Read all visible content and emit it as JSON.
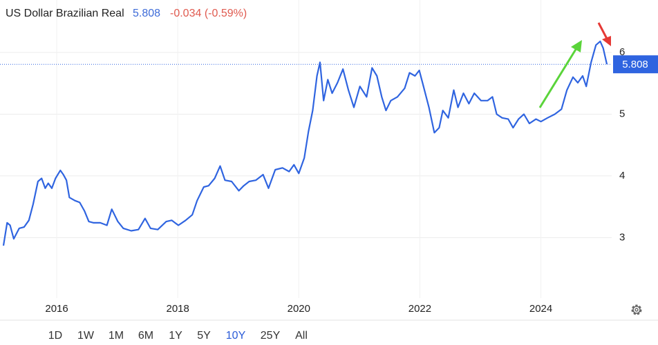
{
  "chart_data": {
    "type": "line",
    "title": "US Dollar Brazilian Real",
    "price": 5.808,
    "change": "-0.034 (-0.59%)",
    "color": "#2f64e0",
    "xlim": [
      2015.12,
      2025.17
    ],
    "ylim": [
      2.02,
      6.85
    ],
    "xticks": [
      2016,
      2018,
      2020,
      2022,
      2024
    ],
    "yticks": [
      3,
      4,
      5,
      6
    ],
    "grid": true,
    "x": [
      2015.12,
      2015.18,
      2015.23,
      2015.29,
      2015.38,
      2015.46,
      2015.54,
      2015.61,
      2015.69,
      2015.75,
      2015.81,
      2015.86,
      2015.92,
      2015.98,
      2016.06,
      2016.11,
      2016.16,
      2016.21,
      2016.3,
      2016.38,
      2016.46,
      2016.53,
      2016.61,
      2016.72,
      2016.83,
      2016.91,
      2017.01,
      2017.1,
      2017.23,
      2017.35,
      2017.46,
      2017.55,
      2017.67,
      2017.81,
      2017.9,
      2018.01,
      2018.13,
      2018.24,
      2018.32,
      2018.43,
      2018.51,
      2018.61,
      2018.7,
      2018.78,
      2018.89,
      2019.01,
      2019.09,
      2019.18,
      2019.29,
      2019.41,
      2019.5,
      2019.61,
      2019.73,
      2019.84,
      2019.92,
      2020.0,
      2020.09,
      2020.16,
      2020.23,
      2020.3,
      2020.35,
      2020.41,
      2020.48,
      2020.55,
      2020.64,
      2020.73,
      2020.82,
      2020.91,
      2021.01,
      2021.12,
      2021.21,
      2021.29,
      2021.37,
      2021.44,
      2021.52,
      2021.63,
      2021.75,
      2021.83,
      2021.92,
      2021.99,
      2022.06,
      2022.15,
      2022.24,
      2022.32,
      2022.38,
      2022.47,
      2022.56,
      2022.63,
      2022.72,
      2022.81,
      2022.9,
      2023.01,
      2023.12,
      2023.2,
      2023.27,
      2023.36,
      2023.46,
      2023.54,
      2023.63,
      2023.72,
      2023.81,
      2023.92,
      2024.0,
      2024.11,
      2024.23,
      2024.34,
      2024.43,
      2024.53,
      2024.61,
      2024.69,
      2024.75,
      2024.83,
      2024.91,
      2024.98,
      2025.03,
      2025.09
    ],
    "values": [
      2.87,
      3.24,
      3.2,
      2.98,
      3.15,
      3.17,
      3.28,
      3.54,
      3.91,
      3.96,
      3.8,
      3.88,
      3.8,
      3.96,
      4.09,
      4.02,
      3.93,
      3.65,
      3.6,
      3.57,
      3.43,
      3.26,
      3.24,
      3.24,
      3.2,
      3.46,
      3.26,
      3.15,
      3.11,
      3.13,
      3.31,
      3.15,
      3.13,
      3.26,
      3.28,
      3.2,
      3.28,
      3.37,
      3.6,
      3.82,
      3.84,
      3.96,
      4.16,
      3.93,
      3.91,
      3.76,
      3.84,
      3.91,
      3.93,
      4.02,
      3.8,
      4.1,
      4.13,
      4.07,
      4.18,
      4.04,
      4.29,
      4.72,
      5.06,
      5.62,
      5.84,
      5.22,
      5.56,
      5.34,
      5.51,
      5.73,
      5.39,
      5.11,
      5.45,
      5.28,
      5.75,
      5.62,
      5.28,
      5.06,
      5.22,
      5.28,
      5.42,
      5.67,
      5.62,
      5.71,
      5.45,
      5.11,
      4.7,
      4.78,
      5.06,
      4.94,
      5.39,
      5.11,
      5.34,
      5.17,
      5.34,
      5.22,
      5.22,
      5.28,
      5.0,
      4.94,
      4.92,
      4.78,
      4.92,
      5.0,
      4.85,
      4.92,
      4.88,
      4.94,
      5.0,
      5.08,
      5.39,
      5.6,
      5.51,
      5.62,
      5.45,
      5.84,
      6.12,
      6.18,
      6.07,
      5.81
    ],
    "ranges": [
      "1D",
      "1W",
      "1M",
      "6M",
      "1Y",
      "5Y",
      "10Y",
      "25Y",
      "All"
    ],
    "active_range": "10Y"
  }
}
